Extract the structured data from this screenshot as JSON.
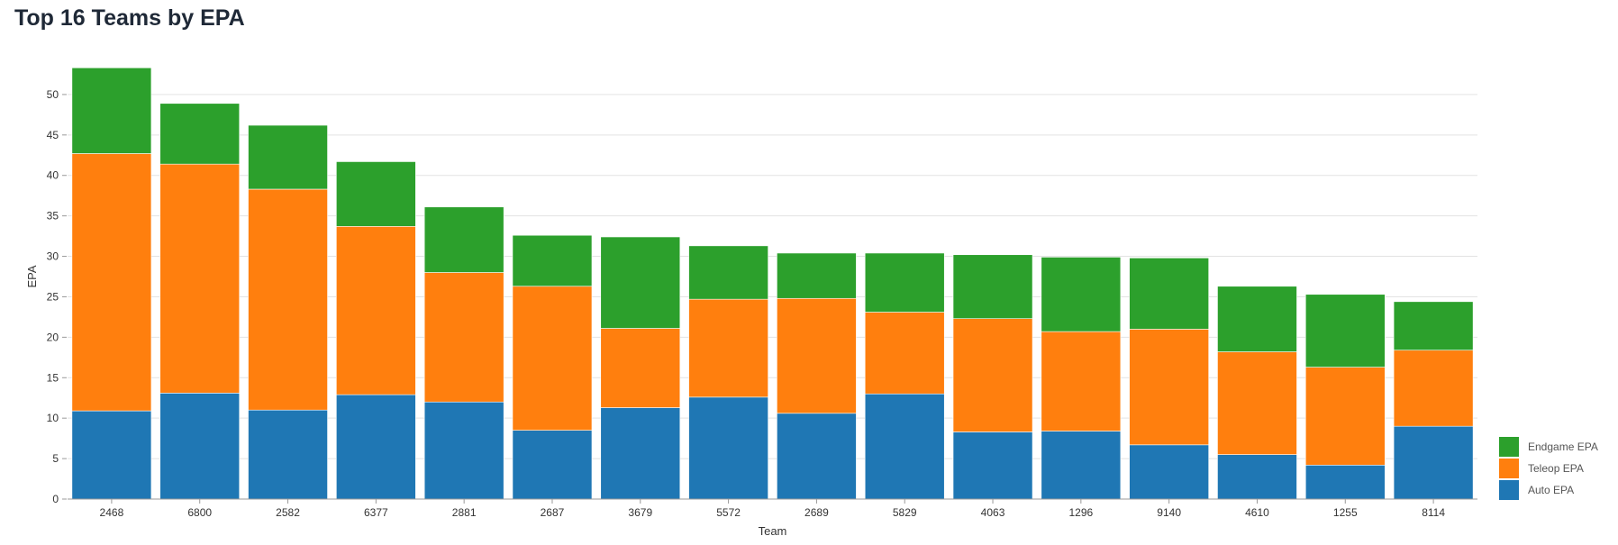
{
  "chart_data": {
    "type": "bar",
    "stacked": true,
    "title": "Top 16 Teams by EPA",
    "xlabel": "Team",
    "ylabel": "EPA",
    "ylim": [
      0,
      55
    ],
    "yticks": [
      0,
      5,
      10,
      15,
      20,
      25,
      30,
      35,
      40,
      45,
      50
    ],
    "grid": true,
    "legend_position": "bottom-right",
    "categories": [
      "2468",
      "6800",
      "2582",
      "6377",
      "2881",
      "2687",
      "3679",
      "5572",
      "2689",
      "5829",
      "4063",
      "1296",
      "9140",
      "4610",
      "1255",
      "8114"
    ],
    "series": [
      {
        "name": "Auto EPA",
        "color": "#1f77b4",
        "values": [
          10.9,
          13.1,
          11.0,
          12.9,
          12.0,
          8.5,
          11.3,
          12.6,
          10.6,
          13.0,
          8.3,
          8.4,
          6.7,
          5.5,
          4.2,
          9.0
        ]
      },
      {
        "name": "Teleop EPA",
        "color": "#ff7f0e",
        "values": [
          31.8,
          28.3,
          27.3,
          20.8,
          16.0,
          17.8,
          9.8,
          12.1,
          14.2,
          10.1,
          14.0,
          12.3,
          14.3,
          12.7,
          12.1,
          9.4
        ]
      },
      {
        "name": "Endgame EPA",
        "color": "#2ca02c",
        "values": [
          10.6,
          7.5,
          7.9,
          8.0,
          8.1,
          6.3,
          11.3,
          6.6,
          5.6,
          7.3,
          7.9,
          9.2,
          8.8,
          8.1,
          9.0,
          6.0
        ]
      }
    ],
    "legend_order": [
      "Endgame EPA",
      "Teleop EPA",
      "Auto EPA"
    ]
  }
}
